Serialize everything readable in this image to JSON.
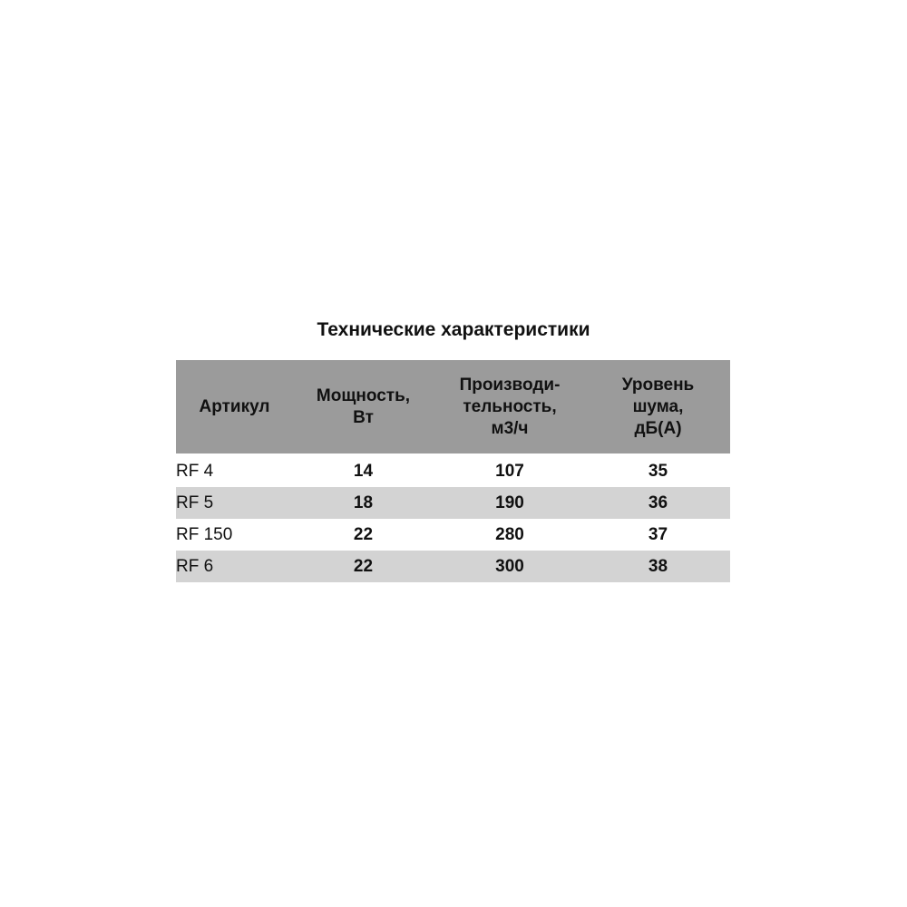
{
  "title": "Технические характеристики",
  "table": {
    "headers": [
      "Артикул",
      "Мощность, Вт",
      "Производи-тельность, м3/ч",
      "Уровень шума, дБ(А)"
    ],
    "header_lines": [
      [
        "Артикул"
      ],
      [
        "Мощность,",
        "Вт"
      ],
      [
        "Производи-",
        "тельность,",
        "м3/ч"
      ],
      [
        "Уровень",
        "шума,",
        "дБ(А)"
      ]
    ],
    "rows": [
      [
        "RF 4",
        "14",
        "107",
        "35"
      ],
      [
        "RF 5",
        "18",
        "190",
        "36"
      ],
      [
        "RF 150",
        "22",
        "280",
        "37"
      ],
      [
        "RF 6",
        "22",
        "300",
        "38"
      ]
    ]
  },
  "colors": {
    "header_bg": "#9b9b9b",
    "stripe_bg": "#d3d3d3"
  }
}
